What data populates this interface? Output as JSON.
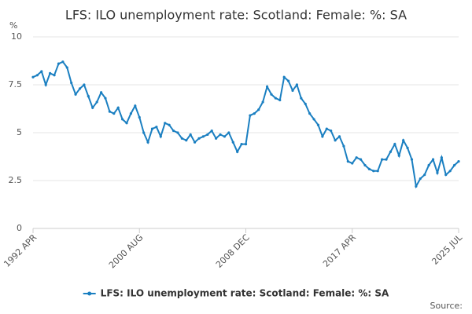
{
  "chart_data": {
    "type": "line",
    "title": "LFS: ILO unemployment rate: Scotland: Female: %: SA",
    "y_label": "%",
    "source": "Source:",
    "categories": [
      "1992 APR",
      null,
      null,
      null,
      null,
      null,
      null,
      null,
      null,
      null,
      null,
      null,
      null,
      null,
      null,
      null,
      null,
      null,
      null,
      null,
      null,
      null,
      null,
      null,
      null,
      "2000 AUG",
      null,
      null,
      null,
      null,
      null,
      null,
      null,
      null,
      null,
      null,
      null,
      null,
      null,
      null,
      null,
      null,
      null,
      null,
      null,
      null,
      null,
      null,
      null,
      null,
      "2008 DEC",
      null,
      null,
      null,
      null,
      null,
      null,
      null,
      null,
      null,
      null,
      null,
      null,
      null,
      null,
      null,
      null,
      null,
      null,
      null,
      null,
      null,
      null,
      null,
      null,
      "2017 APR",
      null,
      null,
      null,
      null,
      null,
      null,
      null,
      null,
      null,
      null,
      null,
      null,
      null,
      null,
      null,
      null,
      null,
      null,
      null,
      null,
      null,
      null,
      null,
      null,
      "2025 JUL"
    ],
    "series": [
      {
        "name": "LFS: ILO unemployment rate: Scotland: Female: %: SA",
        "color": "#1a7fc1",
        "values": [
          7.9,
          8.0,
          8.2,
          7.5,
          8.1,
          8.0,
          8.6,
          8.7,
          8.4,
          7.6,
          7.0,
          7.3,
          7.5,
          6.9,
          6.3,
          6.6,
          7.1,
          6.8,
          6.1,
          6.0,
          6.3,
          5.7,
          5.5,
          6.0,
          6.4,
          5.8,
          5.0,
          4.5,
          5.2,
          5.3,
          4.8,
          5.5,
          5.4,
          5.1,
          5.0,
          4.7,
          4.6,
          4.9,
          4.5,
          4.7,
          4.8,
          4.9,
          5.1,
          4.7,
          4.9,
          4.8,
          5.0,
          4.5,
          4.0,
          4.4,
          4.4,
          5.9,
          6.0,
          6.2,
          6.6,
          7.4,
          7.0,
          6.8,
          6.7,
          7.9,
          7.7,
          7.2,
          7.5,
          6.8,
          6.5,
          6.0,
          5.7,
          5.4,
          4.8,
          5.2,
          5.1,
          4.6,
          4.8,
          4.3,
          3.5,
          3.4,
          3.7,
          3.6,
          3.3,
          3.1,
          3.0,
          3.0,
          3.6,
          3.6,
          4.0,
          4.4,
          3.8,
          4.6,
          4.2,
          3.6,
          2.2,
          2.6,
          2.8,
          3.3,
          3.6,
          2.9,
          3.7,
          2.8,
          3.0,
          3.3,
          3.5
        ]
      }
    ],
    "ylim": [
      0,
      10
    ],
    "yticks": [
      0,
      2.5,
      5,
      7.5,
      10
    ],
    "grid": true,
    "legend": "bottom"
  }
}
